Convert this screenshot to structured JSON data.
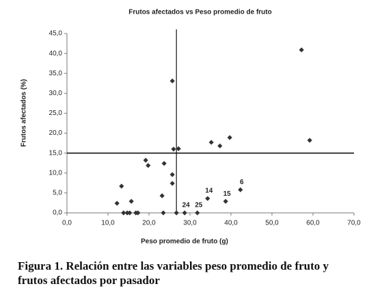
{
  "chart_data": {
    "type": "scatter",
    "title": "Frutos afectados vs Peso promedio de fruto",
    "x_label": "Peso promedio de fruto (g)",
    "y_label": "Frutos afectados (%)",
    "caption": "Figura 1.  Relación  entre  las variables peso  promedio de fruto y frutos afectados por pasador",
    "color": "#333333",
    "x": [
      57.2,
      59.2,
      25.7,
      39.7,
      35.2,
      37.3,
      26.0,
      27.2,
      19.2,
      19.8,
      23.7,
      25.7,
      25.7,
      13.3,
      23.2,
      42.3,
      34.3,
      38.7,
      15.7,
      12.2,
      13.8,
      14.7,
      15.3,
      16.8,
      17.3,
      23.5,
      26.7,
      28.7,
      31.8
    ],
    "values": [
      40.9,
      18.2,
      33.1,
      18.9,
      17.7,
      16.8,
      16.0,
      16.1,
      13.2,
      11.9,
      12.4,
      9.6,
      7.4,
      6.7,
      4.3,
      5.8,
      3.6,
      2.9,
      2.9,
      2.4,
      0,
      0,
      0,
      0,
      0,
      0,
      0,
      0,
      0
    ],
    "point_labels": [
      null,
      null,
      null,
      null,
      null,
      null,
      null,
      null,
      null,
      null,
      null,
      null,
      null,
      null,
      null,
      "6",
      "14",
      "15",
      null,
      null,
      null,
      null,
      null,
      null,
      null,
      null,
      null,
      "24",
      "25"
    ],
    "reference_lines": {
      "x": 26.7,
      "y": 15.0
    },
    "xlim": [
      0,
      70
    ],
    "ylim": [
      0,
      45
    ],
    "xticks": [
      {
        "value": 0,
        "label": "0,0"
      },
      {
        "value": 10,
        "label": "10,0"
      },
      {
        "value": 20,
        "label": "20,0"
      },
      {
        "value": 30,
        "label": "30,0"
      },
      {
        "value": 40,
        "label": "40,0"
      },
      {
        "value": 50,
        "label": "50,0"
      },
      {
        "value": 60,
        "label": "60,0"
      },
      {
        "value": 70,
        "label": "70,0"
      }
    ],
    "yticks": [
      {
        "value": 0,
        "label": "0,0"
      },
      {
        "value": 5,
        "label": "5,0"
      },
      {
        "value": 10,
        "label": "10,0"
      },
      {
        "value": 15,
        "label": "15,0"
      },
      {
        "value": 20,
        "label": "20,0"
      },
      {
        "value": 25,
        "label": "25,0"
      },
      {
        "value": 30,
        "label": "30,0"
      },
      {
        "value": 35,
        "label": "35,0"
      },
      {
        "value": 40,
        "label": "40,0"
      },
      {
        "value": 45,
        "label": "45,0"
      }
    ]
  }
}
